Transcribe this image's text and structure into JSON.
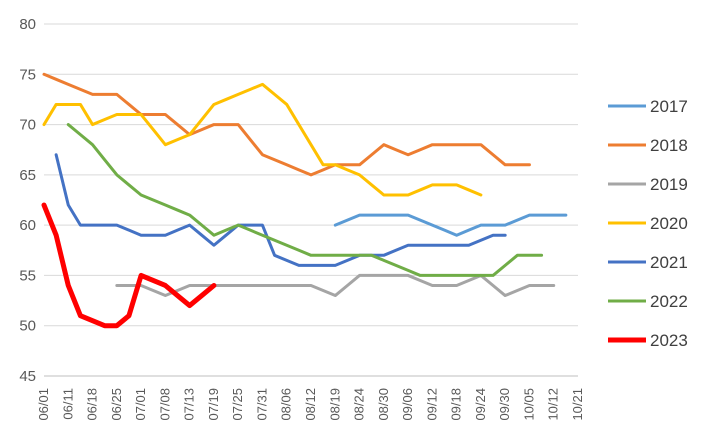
{
  "chart_data": {
    "type": "line",
    "title": "",
    "xlabel": "",
    "ylabel": "",
    "ylim": [
      45,
      80
    ],
    "yticks": [
      45,
      50,
      55,
      60,
      65,
      70,
      75,
      80
    ],
    "grid": true,
    "legend_position": "right",
    "categories": [
      "06/01",
      "06/06",
      "06/11",
      "06/15",
      "06/18",
      "06/22",
      "06/25",
      "06/28",
      "07/01",
      "07/05",
      "07/08",
      "07/10",
      "07/13",
      "07/16",
      "07/19",
      "07/22",
      "07/25",
      "07/28",
      "07/31",
      "08/03",
      "08/06",
      "08/09",
      "08/12",
      "08/15",
      "08/19",
      "08/21",
      "08/24",
      "08/27",
      "08/30",
      "09/02",
      "09/06",
      "09/09",
      "09/12",
      "09/15",
      "09/18",
      "09/21",
      "09/24",
      "09/27",
      "09/30",
      "10/02",
      "10/05",
      "10/09",
      "10/12",
      "10/15",
      "10/21"
    ],
    "x_tick_labels": [
      "06/01",
      "06/11",
      "06/18",
      "06/25",
      "07/01",
      "07/08",
      "07/13",
      "07/19",
      "07/25",
      "07/31",
      "08/06",
      "08/12",
      "08/19",
      "08/24",
      "08/30",
      "09/06",
      "09/12",
      "09/18",
      "09/24",
      "09/30",
      "10/05",
      "10/12",
      "10/21"
    ],
    "series": [
      {
        "name": "2017",
        "color": "#5B9BD5",
        "width": 3,
        "values": [
          null,
          null,
          null,
          null,
          null,
          null,
          null,
          null,
          null,
          null,
          null,
          null,
          null,
          null,
          null,
          null,
          null,
          null,
          null,
          null,
          null,
          null,
          null,
          null,
          60,
          60.5,
          61,
          61,
          61,
          61,
          61,
          60.5,
          60,
          59.5,
          59,
          59.5,
          60,
          60,
          60,
          60.5,
          61,
          61,
          61,
          61,
          null
        ]
      },
      {
        "name": "2018",
        "color": "#ED7D31",
        "width": 3,
        "values": [
          75,
          74.5,
          74,
          73.5,
          73,
          73,
          73,
          72,
          71,
          71,
          71,
          70,
          69,
          69.5,
          70,
          70,
          70,
          68.5,
          67,
          66.5,
          66,
          65.5,
          65,
          65.5,
          66,
          66,
          66,
          67,
          68,
          67.5,
          67,
          67.5,
          68,
          68,
          68,
          68,
          68,
          67,
          66,
          66,
          66,
          null,
          null,
          null,
          null
        ]
      },
      {
        "name": "2019",
        "color": "#A5A5A5",
        "width": 3,
        "values": [
          null,
          null,
          null,
          null,
          null,
          null,
          54,
          54,
          54,
          53.5,
          53,
          53.5,
          54,
          54,
          54,
          54,
          54,
          54,
          54,
          54,
          54,
          54,
          54,
          53.5,
          53,
          54,
          55,
          55,
          55,
          55,
          55,
          54.5,
          54,
          54,
          54,
          54.5,
          55,
          54,
          53,
          53.5,
          54,
          54,
          54,
          null,
          null
        ]
      },
      {
        "name": "2020",
        "color": "#FFC000",
        "width": 3,
        "values": [
          70,
          72,
          72,
          72,
          70,
          70.5,
          71,
          71,
          71,
          69.5,
          68,
          68.5,
          69,
          70.5,
          72,
          72.5,
          73,
          73.5,
          74,
          73,
          72,
          70,
          68,
          66,
          66,
          65.5,
          65,
          64,
          63,
          63,
          63,
          63.5,
          64,
          64,
          64,
          63.5,
          63,
          null,
          null,
          null,
          null,
          null,
          null,
          null,
          null
        ]
      },
      {
        "name": "2021",
        "color": "#4472C4",
        "width": 3,
        "values": [
          null,
          67,
          62,
          60,
          60,
          60,
          60,
          59.5,
          59,
          59,
          59,
          59.5,
          60,
          59,
          58,
          59,
          60,
          60,
          60,
          57,
          56.5,
          56,
          56,
          56,
          56,
          56.5,
          57,
          57,
          57,
          57.5,
          58,
          58,
          58,
          58,
          58,
          58,
          58.5,
          59,
          59,
          null,
          null,
          null,
          null,
          null,
          null
        ]
      },
      {
        "name": "2022",
        "color": "#70AD47",
        "width": 3,
        "values": [
          null,
          null,
          70,
          69,
          68,
          66.5,
          65,
          64,
          63,
          62.5,
          62,
          61.5,
          61,
          60,
          59,
          59.5,
          60,
          59.5,
          59,
          58.5,
          58,
          57.5,
          57,
          57,
          57,
          57,
          57,
          57,
          56.5,
          56,
          55.5,
          55,
          55,
          55,
          55,
          55,
          55,
          55,
          56,
          57,
          57,
          57,
          null,
          null,
          null
        ]
      },
      {
        "name": "2023",
        "color": "#FF0000",
        "width": 5,
        "values": [
          62,
          59,
          54,
          51,
          50.5,
          50,
          50,
          51,
          55,
          54.5,
          54,
          53,
          52,
          53,
          54,
          null,
          null,
          null,
          null,
          null,
          null,
          null,
          null,
          null,
          null,
          null,
          null,
          null,
          null,
          null,
          null,
          null,
          null,
          null,
          null,
          null,
          null,
          null,
          null,
          null,
          null,
          null,
          null,
          null,
          null
        ]
      }
    ]
  }
}
